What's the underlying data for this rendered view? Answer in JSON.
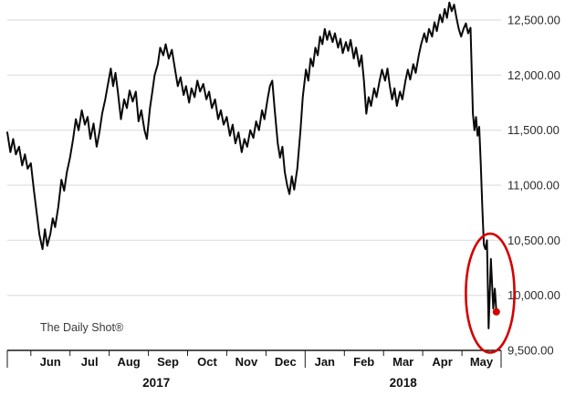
{
  "watermark": "The Daily Shot®",
  "chart_data": {
    "type": "line",
    "title": "",
    "line_color": "#0a0a0a",
    "grid_color": "#d9d9d9",
    "axis_color": "#1a1a1a",
    "label_color": "#2b2b2b",
    "highlight_color": "#d40000",
    "legend": "none",
    "grid": "horizontal",
    "x_axis": {
      "min": -0.6,
      "max": 12,
      "months": [
        "Jun",
        "Jul",
        "Aug",
        "Sep",
        "Oct",
        "Nov",
        "Dec",
        "Jan",
        "Feb",
        "Mar",
        "Apr",
        "May"
      ],
      "years": [
        {
          "label": "2017",
          "start": -0.6,
          "end": 7
        },
        {
          "label": "2018",
          "start": 7,
          "end": 12
        }
      ]
    },
    "y_axis": {
      "side": "right",
      "min": 9500,
      "max": 12500,
      "ticks": [
        9500,
        10000,
        10500,
        11000,
        11500,
        12000,
        12500
      ],
      "tick_labels": [
        "9,500.00",
        "10,000.00",
        "10,500.00",
        "11,000.00",
        "11,500.00",
        "12,000.00",
        "12,500.00"
      ]
    },
    "annotation": {
      "shape": "ellipse",
      "center_x": 11.72,
      "center_y": 10020,
      "rx_months": 0.62,
      "ry_value": 540,
      "dot_x": 11.88,
      "dot_y": 9850
    },
    "series": [
      {
        "name": "price",
        "points": [
          [
            -0.6,
            11480
          ],
          [
            -0.52,
            11300
          ],
          [
            -0.45,
            11420
          ],
          [
            -0.38,
            11280
          ],
          [
            -0.3,
            11350
          ],
          [
            -0.22,
            11180
          ],
          [
            -0.15,
            11280
          ],
          [
            -0.08,
            11150
          ],
          [
            0.0,
            11200
          ],
          [
            0.08,
            10950
          ],
          [
            0.15,
            10750
          ],
          [
            0.22,
            10550
          ],
          [
            0.3,
            10420
          ],
          [
            0.36,
            10600
          ],
          [
            0.42,
            10450
          ],
          [
            0.5,
            10560
          ],
          [
            0.56,
            10700
          ],
          [
            0.62,
            10620
          ],
          [
            0.7,
            10800
          ],
          [
            0.78,
            11050
          ],
          [
            0.85,
            10950
          ],
          [
            0.92,
            11120
          ],
          [
            1.0,
            11250
          ],
          [
            1.08,
            11420
          ],
          [
            1.15,
            11600
          ],
          [
            1.22,
            11500
          ],
          [
            1.3,
            11680
          ],
          [
            1.38,
            11550
          ],
          [
            1.45,
            11620
          ],
          [
            1.52,
            11420
          ],
          [
            1.6,
            11560
          ],
          [
            1.68,
            11350
          ],
          [
            1.75,
            11480
          ],
          [
            1.82,
            11650
          ],
          [
            1.9,
            11780
          ],
          [
            1.96,
            11900
          ],
          [
            2.04,
            12060
          ],
          [
            2.1,
            11900
          ],
          [
            2.16,
            12020
          ],
          [
            2.22,
            11850
          ],
          [
            2.3,
            11600
          ],
          [
            2.38,
            11780
          ],
          [
            2.45,
            11700
          ],
          [
            2.52,
            11860
          ],
          [
            2.6,
            11760
          ],
          [
            2.68,
            11850
          ],
          [
            2.75,
            11580
          ],
          [
            2.82,
            11680
          ],
          [
            2.9,
            11500
          ],
          [
            2.96,
            11420
          ],
          [
            3.04,
            11700
          ],
          [
            3.1,
            11850
          ],
          [
            3.16,
            12000
          ],
          [
            3.24,
            12100
          ],
          [
            3.3,
            12250
          ],
          [
            3.38,
            12180
          ],
          [
            3.44,
            12280
          ],
          [
            3.52,
            12150
          ],
          [
            3.6,
            12230
          ],
          [
            3.68,
            12050
          ],
          [
            3.75,
            11900
          ],
          [
            3.82,
            11980
          ],
          [
            3.9,
            11820
          ],
          [
            3.96,
            11900
          ],
          [
            4.04,
            11750
          ],
          [
            4.1,
            11880
          ],
          [
            4.18,
            11800
          ],
          [
            4.25,
            11950
          ],
          [
            4.32,
            11850
          ],
          [
            4.4,
            11920
          ],
          [
            4.48,
            11780
          ],
          [
            4.55,
            11850
          ],
          [
            4.62,
            11700
          ],
          [
            4.7,
            11780
          ],
          [
            4.78,
            11600
          ],
          [
            4.85,
            11680
          ],
          [
            4.92,
            11550
          ],
          [
            5.0,
            11620
          ],
          [
            5.08,
            11450
          ],
          [
            5.15,
            11550
          ],
          [
            5.22,
            11380
          ],
          [
            5.3,
            11480
          ],
          [
            5.38,
            11300
          ],
          [
            5.45,
            11420
          ],
          [
            5.52,
            11350
          ],
          [
            5.6,
            11500
          ],
          [
            5.68,
            11430
          ],
          [
            5.75,
            11580
          ],
          [
            5.82,
            11500
          ],
          [
            5.9,
            11680
          ],
          [
            5.96,
            11600
          ],
          [
            6.04,
            11780
          ],
          [
            6.1,
            11900
          ],
          [
            6.16,
            11950
          ],
          [
            6.22,
            11700
          ],
          [
            6.3,
            11380
          ],
          [
            6.36,
            11250
          ],
          [
            6.42,
            11350
          ],
          [
            6.48,
            11120
          ],
          [
            6.54,
            11000
          ],
          [
            6.6,
            10920
          ],
          [
            6.66,
            11080
          ],
          [
            6.72,
            10960
          ],
          [
            6.8,
            11150
          ],
          [
            6.88,
            11500
          ],
          [
            6.94,
            11800
          ],
          [
            7.02,
            12050
          ],
          [
            7.08,
            11950
          ],
          [
            7.14,
            12150
          ],
          [
            7.2,
            12080
          ],
          [
            7.26,
            12250
          ],
          [
            7.32,
            12180
          ],
          [
            7.38,
            12350
          ],
          [
            7.44,
            12280
          ],
          [
            7.5,
            12420
          ],
          [
            7.56,
            12320
          ],
          [
            7.62,
            12400
          ],
          [
            7.7,
            12300
          ],
          [
            7.76,
            12380
          ],
          [
            7.84,
            12250
          ],
          [
            7.9,
            12330
          ],
          [
            7.96,
            12200
          ],
          [
            8.04,
            12300
          ],
          [
            8.1,
            12220
          ],
          [
            8.16,
            12320
          ],
          [
            8.24,
            12150
          ],
          [
            8.3,
            12250
          ],
          [
            8.38,
            12080
          ],
          [
            8.44,
            12180
          ],
          [
            8.5,
            11950
          ],
          [
            8.56,
            11650
          ],
          [
            8.62,
            11800
          ],
          [
            8.68,
            11720
          ],
          [
            8.76,
            11880
          ],
          [
            8.82,
            11800
          ],
          [
            8.9,
            11950
          ],
          [
            8.96,
            12050
          ],
          [
            9.04,
            11950
          ],
          [
            9.1,
            12060
          ],
          [
            9.16,
            11900
          ],
          [
            9.22,
            11780
          ],
          [
            9.28,
            11880
          ],
          [
            9.34,
            11720
          ],
          [
            9.42,
            11850
          ],
          [
            9.48,
            11780
          ],
          [
            9.56,
            11950
          ],
          [
            9.62,
            12050
          ],
          [
            9.68,
            11960
          ],
          [
            9.76,
            12100
          ],
          [
            9.82,
            12020
          ],
          [
            9.9,
            12180
          ],
          [
            9.96,
            12280
          ],
          [
            10.04,
            12380
          ],
          [
            10.1,
            12300
          ],
          [
            10.16,
            12420
          ],
          [
            10.24,
            12350
          ],
          [
            10.3,
            12480
          ],
          [
            10.36,
            12400
          ],
          [
            10.44,
            12550
          ],
          [
            10.5,
            12480
          ],
          [
            10.56,
            12600
          ],
          [
            10.62,
            12520
          ],
          [
            10.68,
            12660
          ],
          [
            10.74,
            12580
          ],
          [
            10.8,
            12640
          ],
          [
            10.86,
            12520
          ],
          [
            10.92,
            12420
          ],
          [
            10.98,
            12350
          ],
          [
            11.04,
            12420
          ],
          [
            11.1,
            12470
          ],
          [
            11.16,
            12380
          ],
          [
            11.22,
            12430
          ],
          [
            11.28,
            11650
          ],
          [
            11.32,
            11500
          ],
          [
            11.36,
            11620
          ],
          [
            11.4,
            11450
          ],
          [
            11.44,
            11530
          ],
          [
            11.48,
            11200
          ],
          [
            11.52,
            10800
          ],
          [
            11.56,
            10460
          ],
          [
            11.6,
            10420
          ],
          [
            11.64,
            10500
          ],
          [
            11.68,
            9700
          ],
          [
            11.74,
            10330
          ],
          [
            11.8,
            9880
          ],
          [
            11.84,
            10060
          ],
          [
            11.88,
            9850
          ]
        ]
      }
    ]
  }
}
